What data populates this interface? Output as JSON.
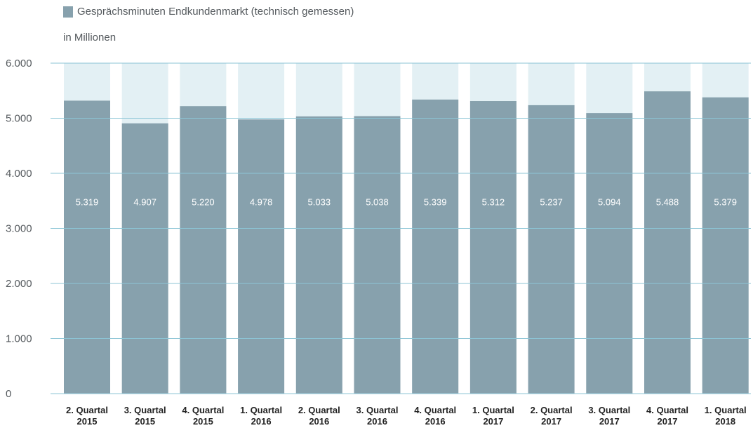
{
  "legend": {
    "label": "Gesprächsminuten Endkundenmarkt (technisch gemessen)",
    "color": "#87a1ad"
  },
  "unit_label": "in Millionen",
  "chart_data": {
    "type": "bar",
    "categories": [
      [
        "2. Quartal",
        "2015"
      ],
      [
        "3. Quartal",
        "2015"
      ],
      [
        "4. Quartal",
        "2015"
      ],
      [
        "1. Quartal",
        "2016"
      ],
      [
        "2. Quartal",
        "2016"
      ],
      [
        "3. Quartal",
        "2016"
      ],
      [
        "4. Quartal",
        "2016"
      ],
      [
        "1. Quartal",
        "2017"
      ],
      [
        "2. Quartal",
        "2017"
      ],
      [
        "3. Quartal",
        "2017"
      ],
      [
        "4. Quartal",
        "2017"
      ],
      [
        "1. Quartal",
        "2018"
      ]
    ],
    "values": [
      5319,
      4907,
      5220,
      4978,
      5033,
      5038,
      5339,
      5312,
      5237,
      5094,
      5488,
      5379
    ],
    "value_labels": [
      "5.319",
      "4.907",
      "5.220",
      "4.978",
      "5.033",
      "5.038",
      "5.339",
      "5.312",
      "5.237",
      "5.094",
      "5.488",
      "5.379"
    ],
    "series": [
      {
        "name": "Gesprächsminuten Endkundenmarkt (technisch gemessen)",
        "values": [
          5319,
          4907,
          5220,
          4978,
          5033,
          5038,
          5339,
          5312,
          5237,
          5094,
          5488,
          5379
        ]
      }
    ],
    "yticks": [
      0,
      1000,
      2000,
      3000,
      4000,
      5000,
      6000
    ],
    "ytick_labels": [
      "0",
      "1.000",
      "2.000",
      "3.000",
      "4.000",
      "5.000",
      "6.000"
    ],
    "ylim": [
      0,
      6000
    ],
    "ylabel": "in Millionen",
    "grid": true,
    "legend_position": "top-left",
    "colors": {
      "bar": "#87a1ad",
      "background_bar": "#e3f0f4",
      "grid": "#8cc5d6",
      "value_label": "#ffffff",
      "tick_label": "#555a5e",
      "category_label": "#222222"
    }
  }
}
